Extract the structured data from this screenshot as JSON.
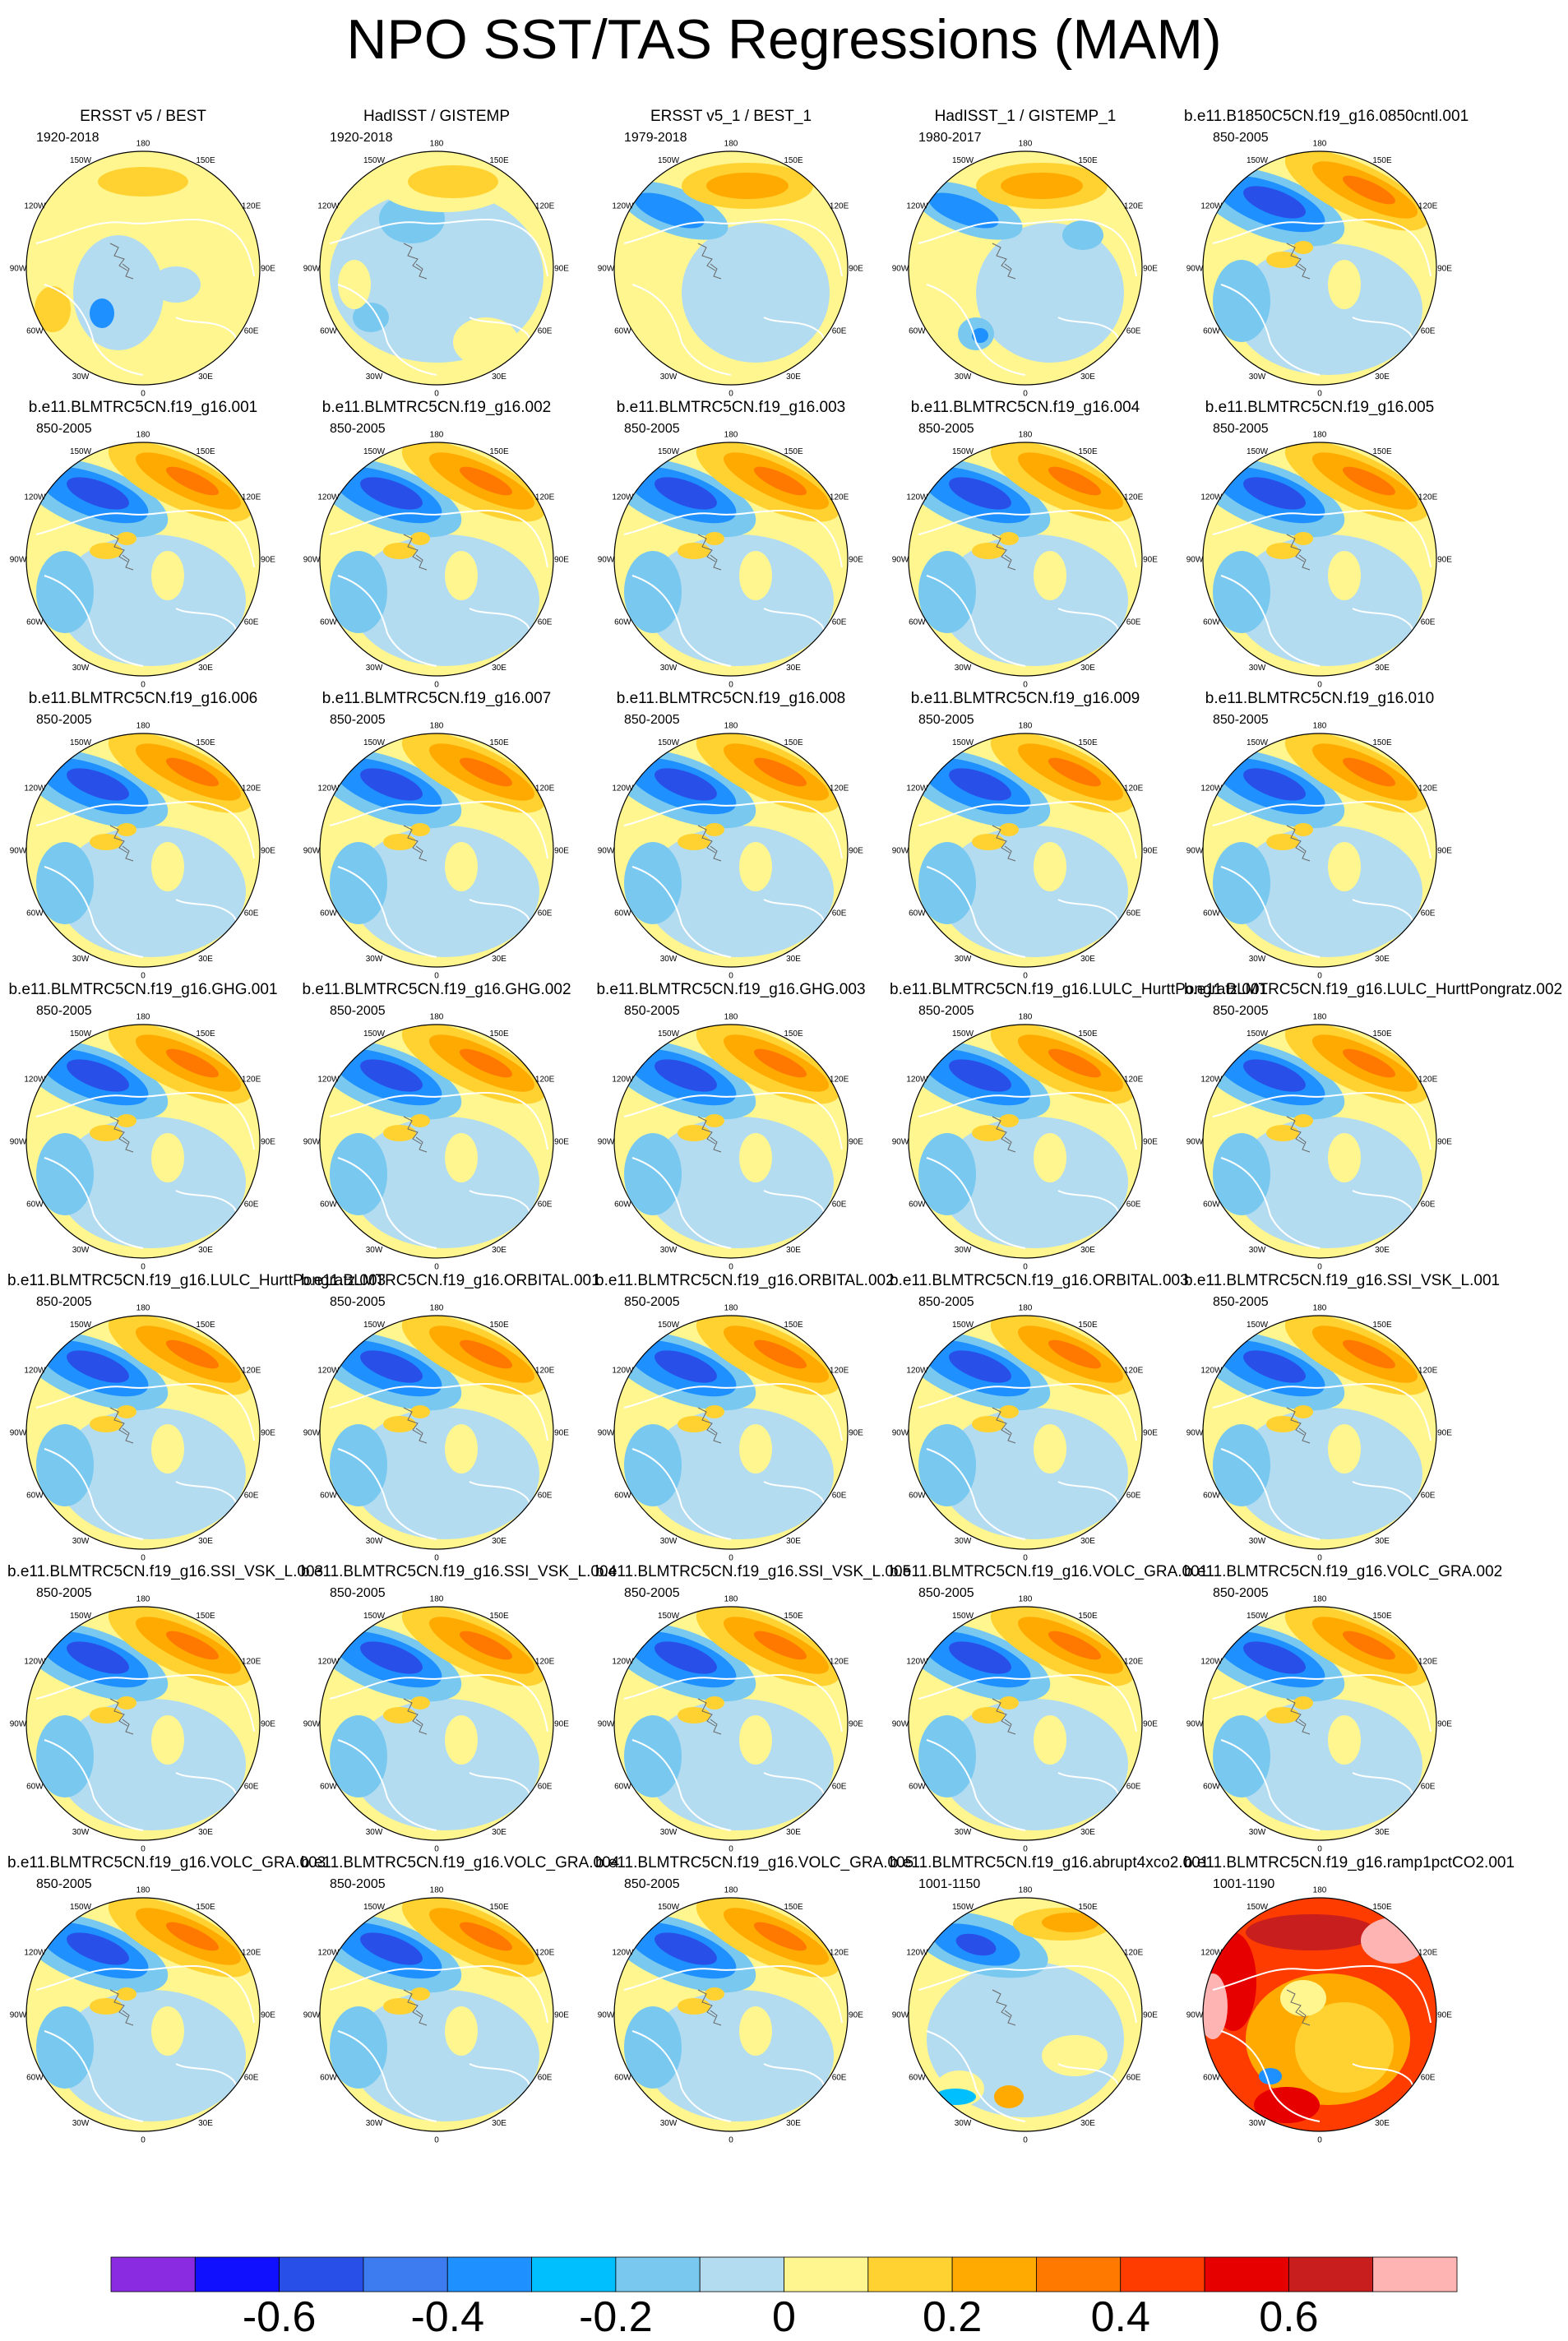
{
  "title": "NPO SST/TAS Regressions (MAM)",
  "lon_labels": [
    "180",
    "150E",
    "120E",
    "90E",
    "60E",
    "30E",
    "0",
    "30W",
    "60W",
    "90W",
    "120W",
    "150W"
  ],
  "panels": [
    {
      "title": "ERSST v5 / BEST",
      "years": "1920-2018",
      "pattern": "obs_long"
    },
    {
      "title": "HadISST / GISTEMP",
      "years": "1920-2018",
      "pattern": "obs_had"
    },
    {
      "title": "ERSST v5_1 / BEST_1",
      "years": "1979-2018",
      "pattern": "obs_recent"
    },
    {
      "title": "HadISST_1 / GISTEMP_1",
      "years": "1980-2017",
      "pattern": "obs_recent2"
    },
    {
      "title": "b.e11.B1850C5CN.f19_g16.0850cntl.001",
      "years": "850-2005",
      "pattern": "model"
    },
    {
      "title": "b.e11.BLMTRC5CN.f19_g16.001",
      "years": "850-2005",
      "pattern": "model"
    },
    {
      "title": "b.e11.BLMTRC5CN.f19_g16.002",
      "years": "850-2005",
      "pattern": "model"
    },
    {
      "title": "b.e11.BLMTRC5CN.f19_g16.003",
      "years": "850-2005",
      "pattern": "model"
    },
    {
      "title": "b.e11.BLMTRC5CN.f19_g16.004",
      "years": "850-2005",
      "pattern": "model"
    },
    {
      "title": "b.e11.BLMTRC5CN.f19_g16.005",
      "years": "850-2005",
      "pattern": "model"
    },
    {
      "title": "b.e11.BLMTRC5CN.f19_g16.006",
      "years": "850-2005",
      "pattern": "model"
    },
    {
      "title": "b.e11.BLMTRC5CN.f19_g16.007",
      "years": "850-2005",
      "pattern": "model"
    },
    {
      "title": "b.e11.BLMTRC5CN.f19_g16.008",
      "years": "850-2005",
      "pattern": "model"
    },
    {
      "title": "b.e11.BLMTRC5CN.f19_g16.009",
      "years": "850-2005",
      "pattern": "model"
    },
    {
      "title": "b.e11.BLMTRC5CN.f19_g16.010",
      "years": "850-2005",
      "pattern": "model"
    },
    {
      "title": "b.e11.BLMTRC5CN.f19_g16.GHG.001",
      "years": "850-2005",
      "pattern": "model"
    },
    {
      "title": "b.e11.BLMTRC5CN.f19_g16.GHG.002",
      "years": "850-2005",
      "pattern": "model"
    },
    {
      "title": "b.e11.BLMTRC5CN.f19_g16.GHG.003",
      "years": "850-2005",
      "pattern": "model"
    },
    {
      "title": "b.e11.BLMTRC5CN.f19_g16.LULC_HurttPongratz.001",
      "years": "850-2005",
      "pattern": "model"
    },
    {
      "title": "b.e11.BLMTRC5CN.f19_g16.LULC_HurttPongratz.002",
      "years": "850-2005",
      "pattern": "model"
    },
    {
      "title": "b.e11.BLMTRC5CN.f19_g16.LULC_HurttPongratz.003",
      "years": "850-2005",
      "pattern": "model"
    },
    {
      "title": "b.e11.BLMTRC5CN.f19_g16.ORBITAL.001",
      "years": "850-2005",
      "pattern": "model"
    },
    {
      "title": "b.e11.BLMTRC5CN.f19_g16.ORBITAL.002",
      "years": "850-2005",
      "pattern": "model"
    },
    {
      "title": "b.e11.BLMTRC5CN.f19_g16.ORBITAL.003",
      "years": "850-2005",
      "pattern": "model"
    },
    {
      "title": "b.e11.BLMTRC5CN.f19_g16.SSI_VSK_L.001",
      "years": "850-2005",
      "pattern": "model"
    },
    {
      "title": "b.e11.BLMTRC5CN.f19_g16.SSI_VSK_L.003",
      "years": "850-2005",
      "pattern": "model"
    },
    {
      "title": "b.e11.BLMTRC5CN.f19_g16.SSI_VSK_L.004",
      "years": "850-2005",
      "pattern": "model"
    },
    {
      "title": "b.e11.BLMTRC5CN.f19_g16.SSI_VSK_L.005",
      "years": "850-2005",
      "pattern": "model"
    },
    {
      "title": "b.e11.BLMTRC5CN.f19_g16.VOLC_GRA.001",
      "years": "850-2005",
      "pattern": "model"
    },
    {
      "title": "b.e11.BLMTRC5CN.f19_g16.VOLC_GRA.002",
      "years": "850-2005",
      "pattern": "model"
    },
    {
      "title": "b.e11.BLMTRC5CN.f19_g16.VOLC_GRA.003",
      "years": "850-2005",
      "pattern": "model"
    },
    {
      "title": "b.e11.BLMTRC5CN.f19_g16.VOLC_GRA.004",
      "years": "850-2005",
      "pattern": "model"
    },
    {
      "title": "b.e11.BLMTRC5CN.f19_g16.VOLC_GRA.005",
      "years": "850-2005",
      "pattern": "model"
    },
    {
      "title": "b.e11.BLMTRC5CN.f19_g16.abrupt4xco2.001",
      "years": "1001-1150",
      "pattern": "abrupt"
    },
    {
      "title": "b.e11.BLMTRC5CN.f19_g16.ramp1pctCO2.001",
      "years": "1001-1190",
      "pattern": "ramp"
    }
  ],
  "colorbar": {
    "colors": [
      "#8a2be2",
      "#1010ff",
      "#2850e8",
      "#3c7cf0",
      "#1e90ff",
      "#00bfff",
      "#78c8f0",
      "#b4dcf0",
      "#fff690",
      "#ffd232",
      "#ffaa00",
      "#ff7800",
      "#ff3c00",
      "#e60000",
      "#c81e1e",
      "#ffb4b4"
    ],
    "tick_labels": [
      "-0.6",
      "-0.4",
      "-0.2",
      "0",
      "0.2",
      "0.4",
      "0.6"
    ]
  }
}
